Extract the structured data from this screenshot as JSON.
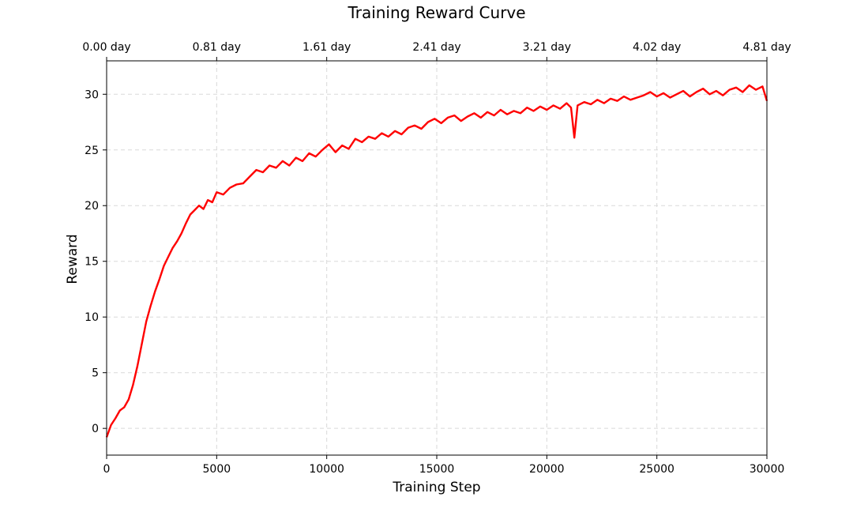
{
  "chart_data": {
    "type": "line",
    "title": "Training Reward Curve",
    "xlabel": "Training Step",
    "ylabel": "Reward",
    "xlim": [
      0,
      30000
    ],
    "ylim": [
      -2.4,
      33.0
    ],
    "x_ticks": [
      0,
      5000,
      10000,
      15000,
      20000,
      25000,
      30000
    ],
    "y_ticks": [
      0,
      5,
      10,
      15,
      20,
      25,
      30
    ],
    "top_axis": {
      "tick_positions": [
        0,
        5000,
        10000,
        15000,
        20000,
        25000,
        30000
      ],
      "tick_labels": [
        "0.00 day",
        "0.81 day",
        "1.61 day",
        "2.41 day",
        "3.21 day",
        "4.02 day",
        "4.81 day"
      ]
    },
    "grid": true,
    "legend": "none",
    "series": [
      {
        "color": "#ff0000",
        "x": [
          0,
          200,
          400,
          600,
          800,
          1000,
          1200,
          1400,
          1600,
          1800,
          2000,
          2200,
          2400,
          2600,
          2800,
          3000,
          3200,
          3400,
          3600,
          3800,
          4000,
          4200,
          4400,
          4600,
          4800,
          5000,
          5300,
          5600,
          5900,
          6200,
          6500,
          6800,
          7100,
          7400,
          7700,
          8000,
          8300,
          8600,
          8900,
          9200,
          9500,
          9800,
          10100,
          10400,
          10700,
          11000,
          11300,
          11600,
          11900,
          12200,
          12500,
          12800,
          13100,
          13400,
          13700,
          14000,
          14300,
          14600,
          14900,
          15200,
          15500,
          15800,
          16100,
          16400,
          16700,
          17000,
          17300,
          17600,
          17900,
          18200,
          18500,
          18800,
          19100,
          19400,
          19700,
          20000,
          20300,
          20600,
          20900,
          21100,
          21250,
          21400,
          21700,
          22000,
          22300,
          22600,
          22900,
          23200,
          23500,
          23800,
          24100,
          24400,
          24700,
          25000,
          25300,
          25600,
          25900,
          26200,
          26500,
          26800,
          27100,
          27400,
          27700,
          28000,
          28300,
          28600,
          28900,
          29200,
          29500,
          29800,
          30000
        ],
        "y": [
          -0.8,
          0.3,
          0.9,
          1.6,
          1.9,
          2.6,
          3.9,
          5.6,
          7.6,
          9.6,
          11.0,
          12.3,
          13.4,
          14.6,
          15.4,
          16.2,
          16.8,
          17.5,
          18.4,
          19.2,
          19.6,
          20.0,
          19.7,
          20.5,
          20.3,
          21.2,
          21.0,
          21.6,
          21.9,
          22.0,
          22.6,
          23.2,
          23.0,
          23.6,
          23.4,
          24.0,
          23.6,
          24.3,
          24.0,
          24.7,
          24.4,
          25.0,
          25.5,
          24.8,
          25.4,
          25.1,
          26.0,
          25.7,
          26.2,
          26.0,
          26.5,
          26.2,
          26.7,
          26.4,
          27.0,
          27.2,
          26.9,
          27.5,
          27.8,
          27.4,
          27.9,
          28.1,
          27.6,
          28.0,
          28.3,
          27.9,
          28.4,
          28.1,
          28.6,
          28.2,
          28.5,
          28.3,
          28.8,
          28.5,
          28.9,
          28.6,
          29.0,
          28.7,
          29.2,
          28.8,
          26.1,
          29.0,
          29.3,
          29.1,
          29.5,
          29.2,
          29.6,
          29.4,
          29.8,
          29.5,
          29.7,
          29.9,
          30.2,
          29.8,
          30.1,
          29.7,
          30.0,
          30.3,
          29.8,
          30.2,
          30.5,
          30.0,
          30.3,
          29.9,
          30.4,
          30.6,
          30.2,
          30.8,
          30.4,
          30.7,
          29.4
        ]
      }
    ]
  }
}
